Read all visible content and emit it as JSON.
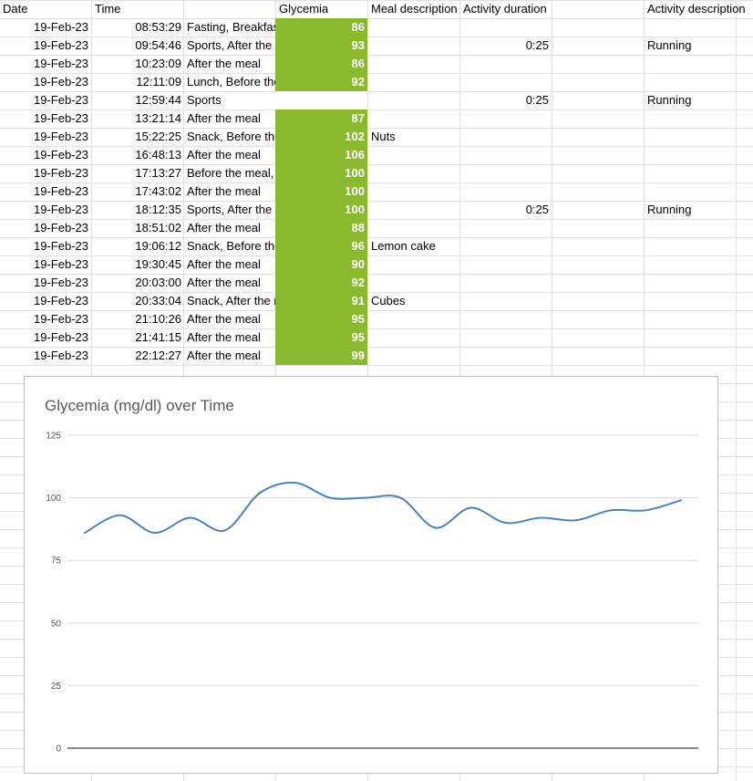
{
  "headers": {
    "date": "Date",
    "time": "Time",
    "glycemia": "Glycemia",
    "meal": "Meal description",
    "duration": "Activity duration",
    "activity": "Activity description"
  },
  "rows": [
    {
      "date": "19-Feb-23",
      "time": "08:53:29",
      "condition": "Fasting, Breakfast",
      "glycemia": "86",
      "meal": "",
      "duration": "",
      "activity": ""
    },
    {
      "date": "19-Feb-23",
      "time": "09:54:46",
      "condition": "Sports, After the meal",
      "glycemia": "93",
      "meal": "",
      "duration": "0:25",
      "activity": "Running"
    },
    {
      "date": "19-Feb-23",
      "time": "10:23:09",
      "condition": "After the meal",
      "glycemia": "86",
      "meal": "",
      "duration": "",
      "activity": ""
    },
    {
      "date": "19-Feb-23",
      "time": "12:11:09",
      "condition": "Lunch, Before the meal",
      "glycemia": "92",
      "meal": "",
      "duration": "",
      "activity": ""
    },
    {
      "date": "19-Feb-23",
      "time": "12:59:44",
      "condition": "Sports",
      "glycemia": "",
      "meal": "",
      "duration": "0:25",
      "activity": "Running"
    },
    {
      "date": "19-Feb-23",
      "time": "13:21:14",
      "condition": "After the meal",
      "glycemia": "87",
      "meal": "",
      "duration": "",
      "activity": ""
    },
    {
      "date": "19-Feb-23",
      "time": "15:22:25",
      "condition": "Snack, Before the meal",
      "glycemia": "102",
      "meal": "Nuts",
      "duration": "",
      "activity": ""
    },
    {
      "date": "19-Feb-23",
      "time": "16:48:13",
      "condition": "After the meal",
      "glycemia": "106",
      "meal": "",
      "duration": "",
      "activity": ""
    },
    {
      "date": "19-Feb-23",
      "time": "17:13:27",
      "condition": "Before the meal,",
      "glycemia": "100",
      "meal": "",
      "duration": "",
      "activity": ""
    },
    {
      "date": "19-Feb-23",
      "time": "17:43:02",
      "condition": "After the meal",
      "glycemia": "100",
      "meal": "",
      "duration": "",
      "activity": ""
    },
    {
      "date": "19-Feb-23",
      "time": "18:12:35",
      "condition": "Sports, After the meal",
      "glycemia": "100",
      "meal": "",
      "duration": "0:25",
      "activity": "Running"
    },
    {
      "date": "19-Feb-23",
      "time": "18:51:02",
      "condition": "After the meal",
      "glycemia": "88",
      "meal": "",
      "duration": "",
      "activity": ""
    },
    {
      "date": "19-Feb-23",
      "time": "19:06:12",
      "condition": "Snack, Before the meal",
      "glycemia": "96",
      "meal": "Lemon cake",
      "duration": "",
      "activity": ""
    },
    {
      "date": "19-Feb-23",
      "time": "19:30:45",
      "condition": "After the meal",
      "glycemia": "90",
      "meal": "",
      "duration": "",
      "activity": ""
    },
    {
      "date": "19-Feb-23",
      "time": "20:03:00",
      "condition": "After the meal",
      "glycemia": "92",
      "meal": "",
      "duration": "",
      "activity": ""
    },
    {
      "date": "19-Feb-23",
      "time": "20:33:04",
      "condition": "Snack, After the meal",
      "glycemia": "91",
      "meal": "Cubes",
      "duration": "",
      "activity": ""
    },
    {
      "date": "19-Feb-23",
      "time": "21:10:26",
      "condition": "After the meal",
      "glycemia": "95",
      "meal": "",
      "duration": "",
      "activity": ""
    },
    {
      "date": "19-Feb-23",
      "time": "21:41:15",
      "condition": "After the meal",
      "glycemia": "95",
      "meal": "",
      "duration": "",
      "activity": ""
    },
    {
      "date": "19-Feb-23",
      "time": "22:12:27",
      "condition": "After the meal",
      "glycemia": "99",
      "meal": "",
      "duration": "",
      "activity": ""
    }
  ],
  "colors": {
    "glycemia_fill": "#8ab82e",
    "line": "#4f81bd",
    "gridline": "#d9d9d9"
  },
  "chart_data": {
    "type": "line",
    "title": "Glycemia (mg/dl) over Time",
    "xlabel": "",
    "ylabel": "",
    "ylim": [
      0,
      125
    ],
    "yticks": [
      0,
      25,
      50,
      75,
      100,
      125
    ],
    "grid": true,
    "smooth": true,
    "series": [
      {
        "values": [
          86,
          93,
          86,
          92,
          87,
          102,
          106,
          100,
          100,
          100,
          88,
          96,
          90,
          92,
          91,
          95,
          95,
          99
        ]
      }
    ]
  }
}
